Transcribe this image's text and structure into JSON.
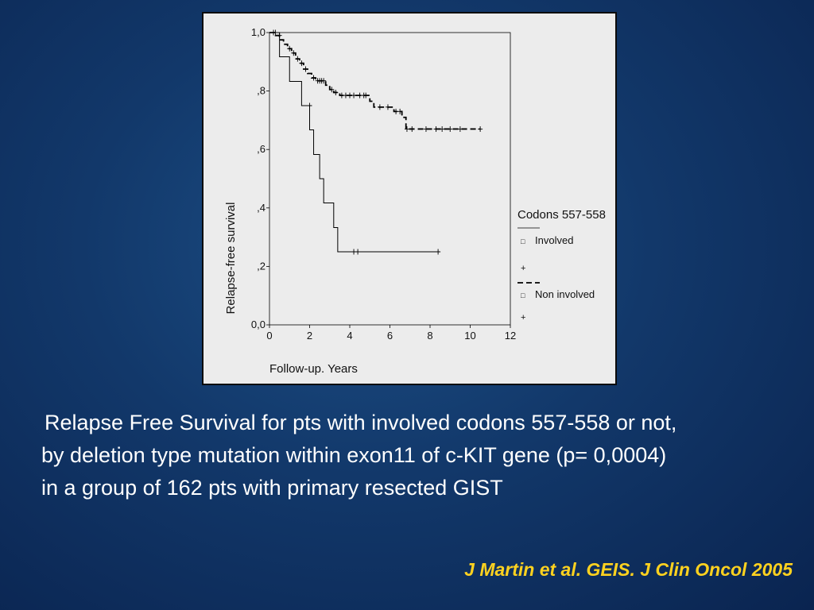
{
  "chart_data": {
    "type": "line",
    "title": "",
    "xlabel": "Follow-up. Years",
    "ylabel": "Relapse-free survival",
    "xlim": [
      0,
      12
    ],
    "ylim": [
      0,
      1
    ],
    "x_ticks": [
      "0",
      "2",
      "4",
      "6",
      "8",
      "10",
      "12"
    ],
    "y_ticks": [
      "0,0",
      ",2",
      ",4",
      ",6",
      ",8",
      "1,0"
    ],
    "grid": false,
    "legend": {
      "title": "Codons 557-558",
      "placement": "right",
      "entries": [
        {
          "label": "Involved",
          "marker": "□",
          "censor_marker": "+",
          "line": "solid"
        },
        {
          "label": "Non involved",
          "marker": "□",
          "censor_marker": "+",
          "line": "dashed"
        }
      ]
    },
    "series": [
      {
        "name": "Involved",
        "style": "solid",
        "steps": [
          [
            0,
            1.0
          ],
          [
            0.5,
            0.917
          ],
          [
            1.0,
            0.833
          ],
          [
            1.6,
            0.75
          ],
          [
            2.0,
            0.667
          ],
          [
            2.2,
            0.583
          ],
          [
            2.5,
            0.5
          ],
          [
            2.7,
            0.417
          ],
          [
            3.2,
            0.333
          ],
          [
            3.4,
            0.25
          ],
          [
            8.4,
            0.25
          ]
        ],
        "censored": [
          [
            2.0,
            0.75
          ],
          [
            4.2,
            0.25
          ],
          [
            4.4,
            0.25
          ],
          [
            8.4,
            0.25
          ]
        ]
      },
      {
        "name": "Non involved",
        "style": "dashed",
        "steps": [
          [
            0,
            1.0
          ],
          [
            0.3,
            0.99
          ],
          [
            0.5,
            0.975
          ],
          [
            0.7,
            0.96
          ],
          [
            0.9,
            0.945
          ],
          [
            1.1,
            0.93
          ],
          [
            1.3,
            0.91
          ],
          [
            1.5,
            0.895
          ],
          [
            1.7,
            0.875
          ],
          [
            1.9,
            0.86
          ],
          [
            2.1,
            0.845
          ],
          [
            2.3,
            0.835
          ],
          [
            2.8,
            0.82
          ],
          [
            3.0,
            0.805
          ],
          [
            3.2,
            0.795
          ],
          [
            3.5,
            0.785
          ],
          [
            5.0,
            0.765
          ],
          [
            5.2,
            0.745
          ],
          [
            6.2,
            0.73
          ],
          [
            6.6,
            0.71
          ],
          [
            6.8,
            0.67
          ],
          [
            10.5,
            0.67
          ]
        ],
        "censored": [
          [
            0.2,
            1.0
          ],
          [
            0.3,
            1.0
          ],
          [
            0.5,
            0.99
          ],
          [
            1.0,
            0.945
          ],
          [
            1.2,
            0.93
          ],
          [
            1.4,
            0.91
          ],
          [
            1.6,
            0.895
          ],
          [
            1.8,
            0.875
          ],
          [
            2.2,
            0.845
          ],
          [
            2.4,
            0.835
          ],
          [
            2.5,
            0.835
          ],
          [
            2.6,
            0.835
          ],
          [
            2.7,
            0.835
          ],
          [
            3.1,
            0.805
          ],
          [
            3.3,
            0.795
          ],
          [
            3.6,
            0.785
          ],
          [
            3.8,
            0.785
          ],
          [
            4.0,
            0.785
          ],
          [
            4.2,
            0.785
          ],
          [
            4.5,
            0.785
          ],
          [
            4.7,
            0.785
          ],
          [
            4.8,
            0.785
          ],
          [
            5.5,
            0.745
          ],
          [
            5.9,
            0.745
          ],
          [
            6.3,
            0.73
          ],
          [
            6.5,
            0.73
          ],
          [
            6.85,
            0.67
          ],
          [
            7.1,
            0.67
          ],
          [
            7.8,
            0.67
          ],
          [
            8.3,
            0.67
          ],
          [
            8.6,
            0.67
          ],
          [
            9.0,
            0.67
          ],
          [
            9.5,
            0.67
          ],
          [
            10.5,
            0.67
          ]
        ]
      }
    ]
  },
  "caption": {
    "line1": "Relapse Free Survival for pts with involved codons 557-558 or not,",
    "line2": "by deletion type mutation within exon11 of c-KIT gene (p= 0,0004)",
    "line3": "in a group of 162 pts with primary resected GIST"
  },
  "citation": "J Martin et al. GEIS. J Clin Oncol 2005",
  "colors": {
    "background_center": "#1c4f86",
    "background_edge": "#0a2450",
    "chart_panel": "#ececec",
    "caption_text": "#ffffff",
    "citation_text": "#ffd21f"
  }
}
